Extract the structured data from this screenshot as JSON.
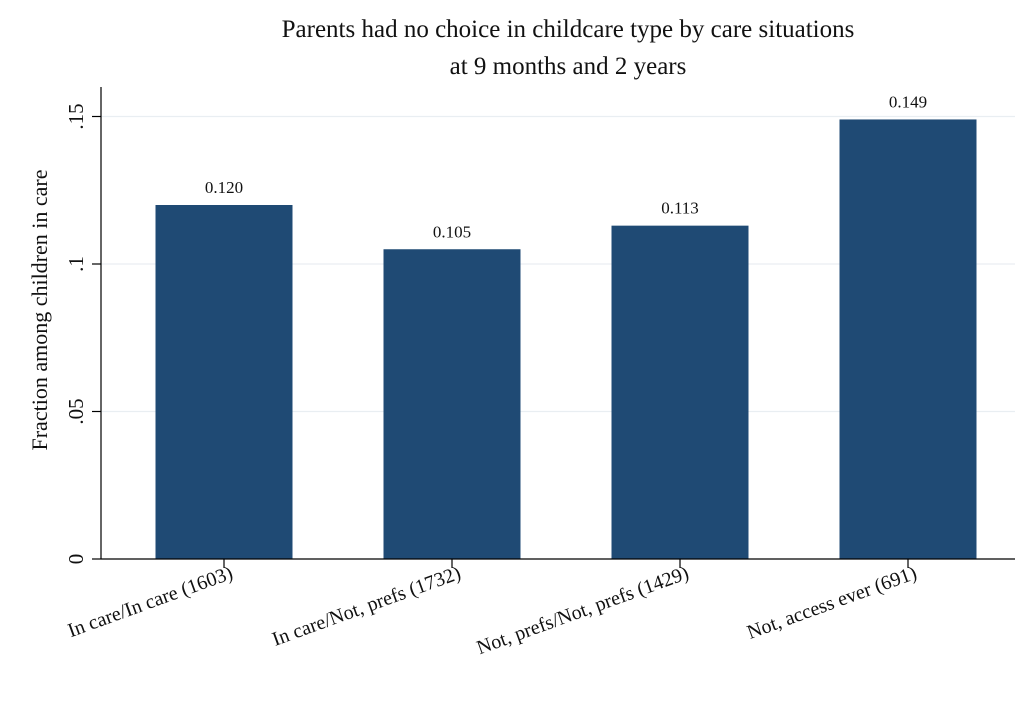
{
  "chart_data": {
    "type": "bar",
    "title_lines": [
      "Parents had no choice in childcare type by care situations",
      "at 9 months and 2 years"
    ],
    "xlabel": "",
    "ylabel": "Fraction among children in care",
    "categories": [
      "In care/In care (1603)",
      "In care/Not, prefs (1732)",
      "Not, prefs/Not, prefs (1429)",
      "Not, access ever (691)"
    ],
    "values": [
      0.12,
      0.105,
      0.113,
      0.149
    ],
    "value_labels": [
      "0.120",
      "0.105",
      "0.113",
      "0.149"
    ],
    "ylim": [
      0,
      0.16
    ],
    "yticks": [
      0,
      0.05,
      0.1,
      0.15
    ],
    "ytick_labels": [
      "0",
      ".05",
      ".1",
      ".15"
    ],
    "grid": true,
    "legend": "none",
    "bar_color": "#1f4a74"
  }
}
